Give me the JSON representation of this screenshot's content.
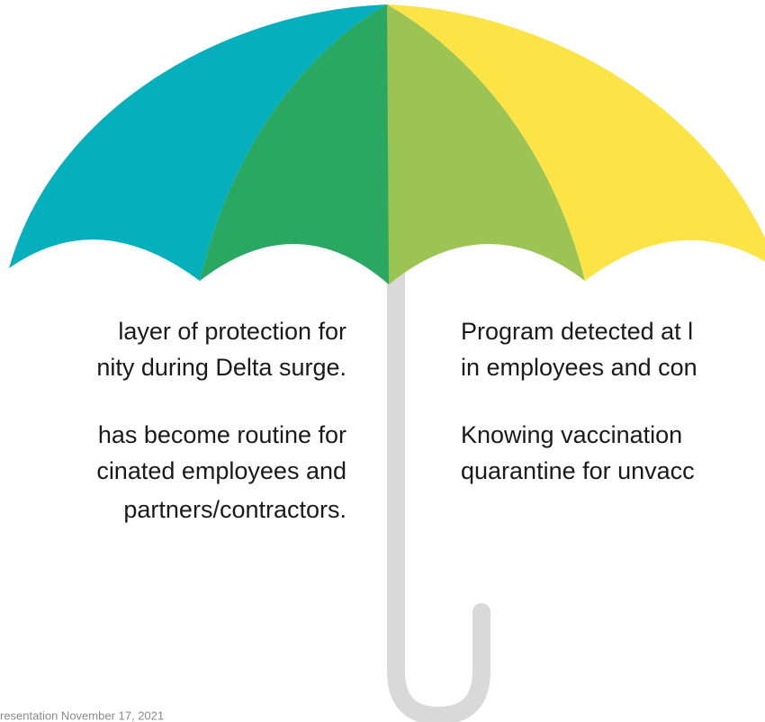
{
  "left_text": {
    "paragraph_1": [
      "layer of protection for",
      "nity during Delta surge."
    ],
    "paragraph_2": [
      "has become routine for",
      "cinated employees and",
      "partners/contractors."
    ]
  },
  "right_text": {
    "paragraph_1": [
      "Program detected at l",
      "in employees and con"
    ],
    "paragraph_2": [
      "Knowing vaccination",
      "quarantine for unvacc"
    ]
  },
  "footer": "resentation November 17, 2021"
}
